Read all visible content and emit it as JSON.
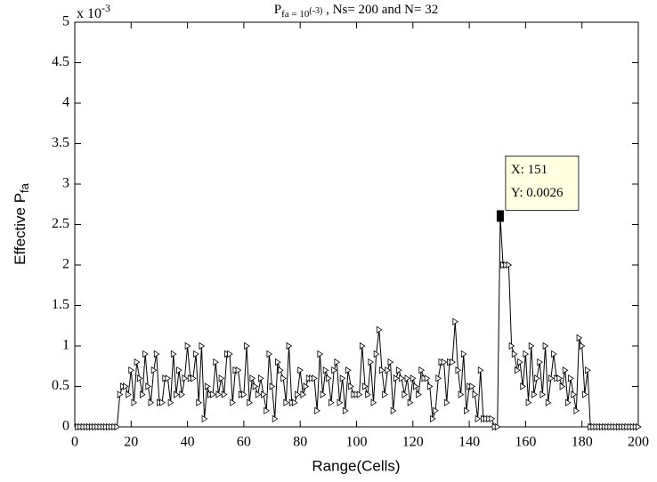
{
  "chart_data": {
    "type": "line",
    "title": {
      "main": "P",
      "sub": "fa = 10",
      "sup": "(-3)",
      "rest": " , Ns= 200  and N= 32"
    },
    "y_multiplier": {
      "base": "x 10",
      "exponent": "-3"
    },
    "xlabel": "Range(Cells)",
    "ylabel": {
      "main": "Effective P",
      "sub": "fa"
    },
    "xlim": [
      0,
      200
    ],
    "xticks": [
      0,
      20,
      40,
      60,
      80,
      100,
      120,
      140,
      160,
      180,
      200
    ],
    "ylim": [
      0,
      5
    ],
    "yticks": [
      0,
      0.5,
      1,
      1.5,
      2,
      2.5,
      3,
      3.5,
      4,
      4.5,
      5
    ],
    "grid": false,
    "x": [
      1,
      2,
      3,
      4,
      5,
      6,
      7,
      8,
      9,
      10,
      11,
      12,
      13,
      14,
      15,
      16,
      17,
      18,
      19,
      20,
      21,
      22,
      23,
      24,
      25,
      26,
      27,
      28,
      29,
      30,
      31,
      32,
      33,
      34,
      35,
      36,
      37,
      38,
      39,
      40,
      41,
      42,
      43,
      44,
      45,
      46,
      47,
      48,
      49,
      50,
      51,
      52,
      53,
      54,
      55,
      56,
      57,
      58,
      59,
      60,
      61,
      62,
      63,
      64,
      65,
      66,
      67,
      68,
      69,
      70,
      71,
      72,
      73,
      74,
      75,
      76,
      77,
      78,
      79,
      80,
      81,
      82,
      83,
      84,
      85,
      86,
      87,
      88,
      89,
      90,
      91,
      92,
      93,
      94,
      95,
      96,
      97,
      98,
      99,
      100,
      101,
      102,
      103,
      104,
      105,
      106,
      107,
      108,
      109,
      110,
      111,
      112,
      113,
      114,
      115,
      116,
      117,
      118,
      119,
      120,
      121,
      122,
      123,
      124,
      125,
      126,
      127,
      128,
      129,
      130,
      131,
      132,
      133,
      134,
      135,
      136,
      137,
      138,
      139,
      140,
      141,
      142,
      143,
      144,
      145,
      146,
      147,
      148,
      149,
      150,
      151,
      152,
      153,
      154,
      155,
      156,
      157,
      158,
      159,
      160,
      161,
      162,
      163,
      164,
      165,
      166,
      167,
      168,
      169,
      170,
      171,
      172,
      173,
      174,
      175,
      176,
      177,
      178,
      179,
      180,
      181,
      182,
      183,
      184,
      185,
      186,
      187,
      188,
      189,
      190,
      191,
      192,
      193,
      194,
      195,
      196,
      197,
      198,
      199,
      200
    ],
    "series": [
      {
        "color": "#000000",
        "values": [
          0,
          0,
          0,
          0,
          0,
          0,
          0,
          0,
          0,
          0,
          0,
          0,
          0,
          0,
          0,
          0.4,
          0.5,
          0.5,
          0.4,
          0.7,
          0.3,
          0.8,
          0.6,
          0.4,
          0.9,
          0.5,
          0.3,
          0.7,
          0.9,
          0.3,
          0.3,
          0.6,
          0.6,
          0.3,
          0.9,
          0.4,
          0.7,
          0.4,
          0.6,
          1.0,
          0.6,
          0.6,
          0.9,
          0.3,
          1.0,
          0.1,
          0.5,
          0.4,
          0.4,
          0.8,
          0.4,
          0.6,
          0.4,
          0.9,
          0.9,
          0.3,
          0.7,
          0.7,
          0.4,
          0.4,
          1.0,
          0.3,
          0.6,
          0.5,
          0.4,
          0.6,
          0.4,
          0.2,
          0.9,
          0.5,
          0.1,
          0.8,
          0.7,
          0.6,
          0.3,
          1.0,
          0.3,
          0.3,
          0.4,
          0.7,
          0.4,
          0.5,
          0.6,
          0.6,
          0.6,
          0.2,
          0.9,
          0.4,
          0.7,
          0.6,
          0.3,
          0.7,
          0.8,
          0.3,
          0.6,
          0.2,
          0.7,
          0.5,
          0.4,
          0.4,
          0.4,
          1.0,
          0.5,
          0.4,
          0.8,
          0.3,
          0.9,
          1.2,
          0.7,
          0.4,
          0.7,
          0.8,
          0.2,
          0.6,
          0.7,
          0.6,
          0.4,
          0.6,
          0.3,
          0.6,
          0.5,
          0.4,
          0.7,
          0.6,
          0.6,
          0.5,
          0.1,
          0.2,
          0.6,
          0.8,
          0.8,
          0.3,
          0.8,
          0.8,
          1.3,
          0.7,
          0.4,
          0.9,
          0.2,
          0.5,
          0.5,
          0.4,
          0.1,
          0.7,
          0.1,
          0.1,
          0.1,
          0.1,
          0,
          0,
          2.6,
          2.0,
          2.0,
          2.0,
          1.0,
          0.9,
          0.7,
          0.8,
          0.5,
          0.9,
          0.3,
          1.0,
          0.4,
          0.6,
          0.8,
          0.4,
          1.0,
          0.3,
          0.6,
          0.9,
          0.6,
          0.6,
          0.5,
          0.7,
          0.3,
          0.6,
          0.4,
          0.2,
          1.1,
          1.0,
          0.4,
          0.7,
          0,
          0,
          0,
          0,
          0,
          0,
          0,
          0,
          0,
          0,
          0,
          0,
          0,
          0,
          0,
          0,
          0,
          0
        ]
      }
    ],
    "annotations": [
      {
        "lines": [
          "X: 151",
          "Y: 0.0026"
        ],
        "index": 150
      }
    ]
  }
}
